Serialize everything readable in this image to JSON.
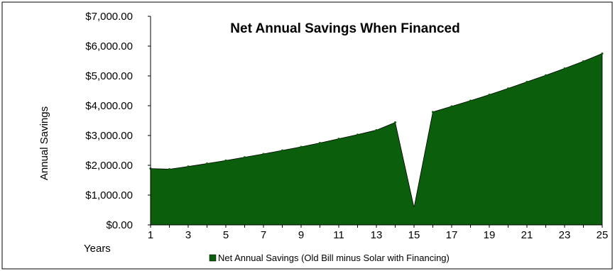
{
  "chart_data": {
    "type": "area",
    "title": "Net Annual Savings When Financed",
    "xlabel": "Years",
    "ylabel": "Annual Savings",
    "x": [
      1,
      2,
      3,
      4,
      5,
      6,
      7,
      8,
      9,
      10,
      11,
      12,
      13,
      14,
      15,
      16,
      17,
      18,
      19,
      20,
      21,
      22,
      23,
      24,
      25
    ],
    "x_tick_labels": [
      "1",
      "3",
      "5",
      "7",
      "9",
      "11",
      "13",
      "15",
      "17",
      "19",
      "21",
      "23",
      "25"
    ],
    "y_tick_labels": [
      "$0.00",
      "$1,000.00",
      "$2,000.00",
      "$3,000.00",
      "$4,000.00",
      "$5,000.00",
      "$6,000.00",
      "$7,000.00"
    ],
    "ylim": [
      0,
      7000
    ],
    "grid": false,
    "legend_position": "bottom",
    "series": [
      {
        "name": "Net Annual Savings (Old Bill minus Solar with Financing)",
        "color": "#0b5e0b",
        "values": [
          1890,
          1870,
          1960,
          2060,
          2160,
          2270,
          2380,
          2500,
          2620,
          2750,
          2890,
          3030,
          3180,
          3440,
          580,
          3790,
          3980,
          4170,
          4370,
          4580,
          4800,
          5020,
          5250,
          5490,
          5750
        ]
      }
    ]
  }
}
